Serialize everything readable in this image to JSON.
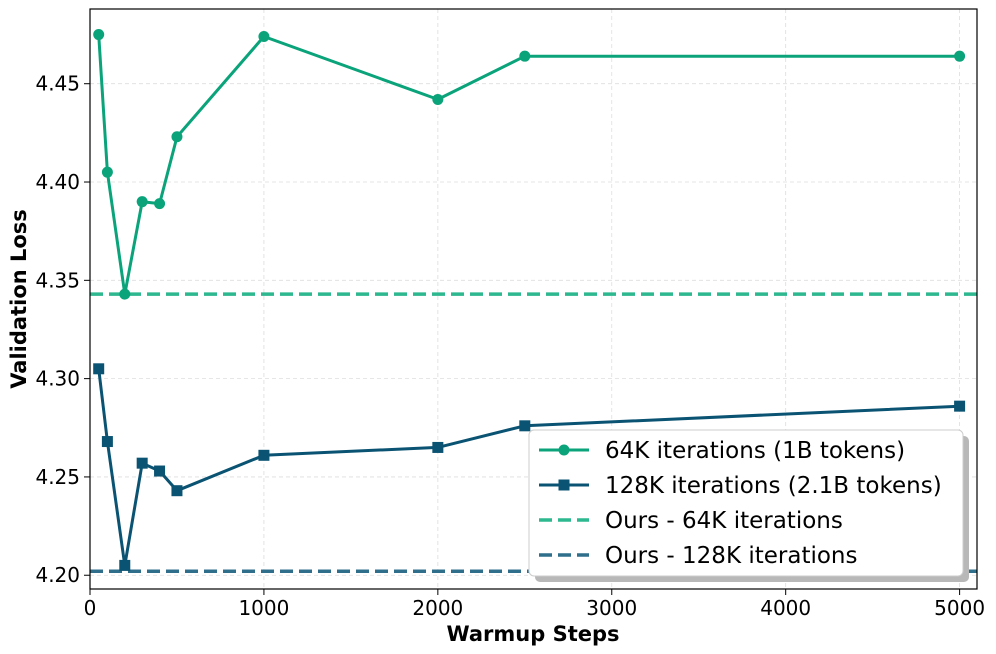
{
  "chart_data": {
    "type": "line",
    "title": "",
    "xlabel": "Warmup Steps",
    "ylabel": "Validation Loss",
    "xlim": [
      0,
      5100
    ],
    "ylim": [
      4.193,
      4.488
    ],
    "xticks": [
      0,
      1000,
      2000,
      3000,
      4000,
      5000
    ],
    "xtick_labels": [
      "0",
      "1000",
      "2000",
      "3000",
      "4000",
      "5000"
    ],
    "yticks": [
      4.2,
      4.25,
      4.3,
      4.35,
      4.4,
      4.45
    ],
    "ytick_labels": [
      "4.20",
      "4.25",
      "4.30",
      "4.35",
      "4.40",
      "4.45"
    ],
    "grid": true,
    "legend_position": "lower-right",
    "series": [
      {
        "name": "64K iterations (1B tokens)",
        "color": "#0aa37a",
        "marker": "circle",
        "x": [
          50,
          100,
          200,
          300,
          400,
          500,
          1000,
          2000,
          2500,
          5000
        ],
        "y": [
          4.475,
          4.405,
          4.343,
          4.39,
          4.389,
          4.423,
          4.474,
          4.442,
          4.464,
          4.464
        ]
      },
      {
        "name": "128K iterations (2.1B tokens)",
        "color": "#0b5372",
        "marker": "square",
        "x": [
          50,
          100,
          200,
          300,
          400,
          500,
          1000,
          2000,
          2500,
          5000
        ],
        "y": [
          4.305,
          4.268,
          4.205,
          4.257,
          4.253,
          4.243,
          4.261,
          4.265,
          4.276,
          4.286
        ]
      }
    ],
    "reference_lines": [
      {
        "name": "Ours - 64K iterations",
        "y": 4.343,
        "color": "#2db88f",
        "style": "dashed"
      },
      {
        "name": "Ours - 128K iterations",
        "y": 4.202,
        "color": "#2f6f8c",
        "style": "dashed"
      }
    ]
  }
}
